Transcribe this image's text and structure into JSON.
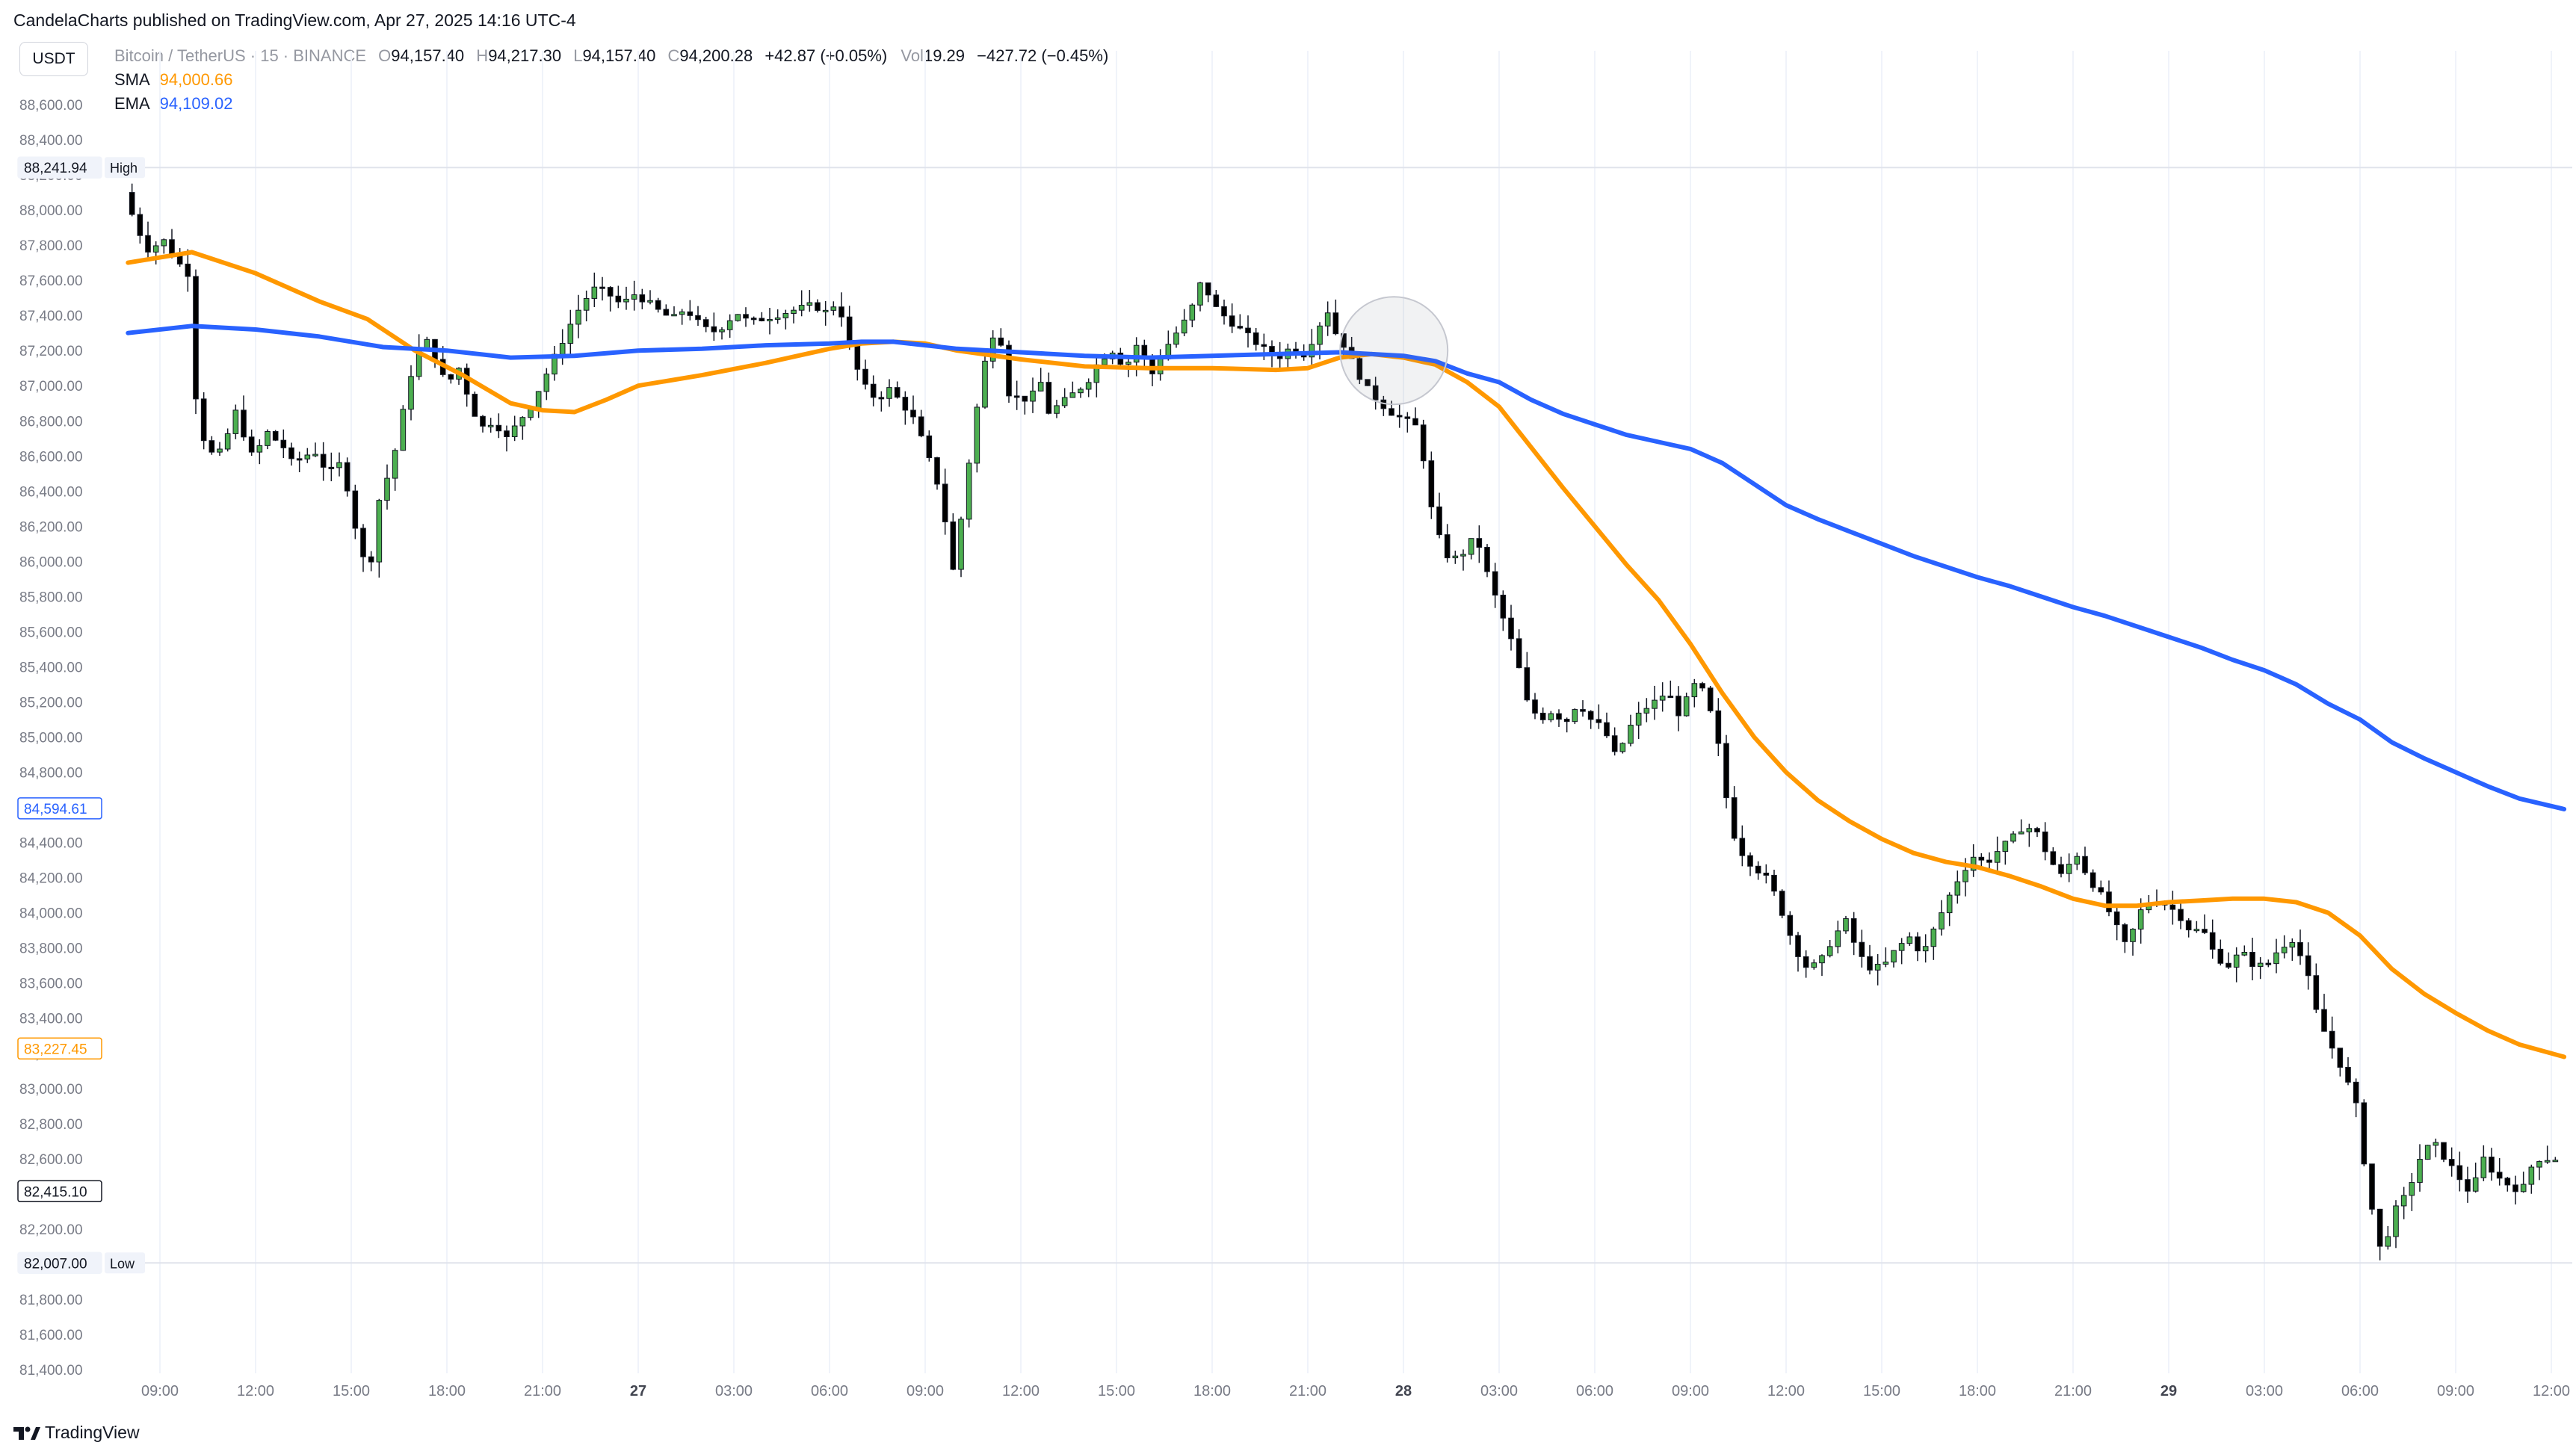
{
  "header": {
    "published": "CandelaCharts published on TradingView.com, Apr 27, 2025 14:16 UTC-4",
    "symbol_button": "USDT"
  },
  "legend": {
    "title": "Bitcoin / TetherUS · 15 · BINANCE",
    "o_label": "O",
    "o_value": "94,157.40",
    "h_label": "H",
    "h_value": "94,217.30",
    "l_label": "L",
    "l_value": "94,157.40",
    "c_label": "C",
    "c_value": "94,200.28",
    "change": "+42.87 (+0.05%)",
    "vol_label": "Vol",
    "vol_value": "19.29",
    "vol_change": "−427.72 (−0.45%)",
    "sma_label": "SMA",
    "sma_value": "94,000.66",
    "ema_label": "EMA",
    "ema_value": "94,109.02"
  },
  "footer": {
    "brand": "TradingView"
  },
  "colors": {
    "up": "#4caf50",
    "down": "#000000",
    "sma": "#ff9800",
    "ema": "#2962ff",
    "grid": "#f0f3fa",
    "text": "#131722",
    "muted": "#787b86"
  },
  "chart_data": {
    "type": "candlestick",
    "ylim": [
      81400,
      88700
    ],
    "y_ticks": [
      "88,600.00",
      "88,400.00",
      "88,200.00",
      "88,000.00",
      "87,800.00",
      "87,600.00",
      "87,400.00",
      "87,200.00",
      "87,000.00",
      "86,800.00",
      "86,600.00",
      "86,400.00",
      "86,200.00",
      "86,000.00",
      "85,800.00",
      "85,600.00",
      "85,400.00",
      "85,200.00",
      "85,000.00",
      "84,800.00",
      "84,600.00",
      "84,400.00",
      "84,200.00",
      "84,000.00",
      "83,800.00",
      "83,600.00",
      "83,400.00",
      "83,200.00",
      "83,000.00",
      "82,800.00",
      "82,600.00",
      "82,400.00",
      "82,200.00",
      "82,000.00",
      "81,800.00",
      "81,600.00",
      "81,400.00"
    ],
    "x_ticks": [
      "09:00",
      "12:00",
      "15:00",
      "18:00",
      "21:00",
      "27",
      "03:00",
      "06:00",
      "09:00",
      "12:00",
      "15:00",
      "18:00",
      "21:00",
      "28",
      "03:00",
      "06:00",
      "09:00",
      "12:00",
      "15:00",
      "18:00",
      "21:00",
      "29",
      "03:00",
      "06:00",
      "09:00",
      "12:00"
    ],
    "x_tick_hours": [
      9,
      12,
      15,
      18,
      21,
      24,
      27,
      30,
      33,
      36,
      39,
      42,
      45,
      48,
      51,
      54,
      57,
      60,
      63,
      66,
      69,
      72,
      75,
      78,
      81,
      84
    ],
    "x_range_hours": [
      8,
      84.4
    ],
    "day_boundaries": [
      24,
      48,
      72
    ],
    "price_labels": [
      {
        "text": "88,241.94",
        "value": 88241.94,
        "tag": "High",
        "style": "high"
      },
      {
        "text": "84,594.61",
        "value": 84594.61,
        "tag": "",
        "style": "ema"
      },
      {
        "text": "83,227.45",
        "value": 83227.45,
        "tag": "",
        "style": "sma"
      },
      {
        "text": "82,415.10",
        "value": 82415.1,
        "tag": "",
        "style": "last"
      },
      {
        "text": "82,007.00",
        "value": 82007.0,
        "tag": "Low",
        "style": "low"
      }
    ],
    "high": 88241.94,
    "low": 82007.0,
    "candle_path": [
      [
        8.0,
        88100
      ],
      [
        8.4,
        87900
      ],
      [
        8.8,
        87760
      ],
      [
        9.2,
        87840
      ],
      [
        9.6,
        87720
      ],
      [
        10.0,
        87640
      ],
      [
        10.3,
        86800
      ],
      [
        10.6,
        86650
      ],
      [
        10.9,
        86580
      ],
      [
        11.2,
        86700
      ],
      [
        11.5,
        86850
      ],
      [
        11.8,
        86700
      ],
      [
        12.1,
        86560
      ],
      [
        12.4,
        86750
      ],
      [
        12.7,
        86700
      ],
      [
        13.0,
        86650
      ],
      [
        13.3,
        86550
      ],
      [
        13.6,
        86600
      ],
      [
        14.0,
        86620
      ],
      [
        14.4,
        86500
      ],
      [
        14.8,
        86560
      ],
      [
        15.1,
        86350
      ],
      [
        15.4,
        86050
      ],
      [
        15.7,
        85950
      ],
      [
        16.0,
        86350
      ],
      [
        16.3,
        86500
      ],
      [
        16.6,
        86700
      ],
      [
        16.9,
        87000
      ],
      [
        17.2,
        87200
      ],
      [
        17.5,
        87250
      ],
      [
        17.8,
        87150
      ],
      [
        18.1,
        87000
      ],
      [
        18.5,
        87100
      ],
      [
        18.9,
        86880
      ],
      [
        19.2,
        86760
      ],
      [
        19.6,
        86800
      ],
      [
        20.0,
        86700
      ],
      [
        20.4,
        86800
      ],
      [
        20.8,
        86900
      ],
      [
        21.2,
        87050
      ],
      [
        21.6,
        87200
      ],
      [
        22.0,
        87350
      ],
      [
        22.4,
        87480
      ],
      [
        22.8,
        87560
      ],
      [
        23.2,
        87520
      ],
      [
        23.6,
        87460
      ],
      [
        24.0,
        87520
      ],
      [
        24.4,
        87480
      ],
      [
        24.8,
        87420
      ],
      [
        25.2,
        87380
      ],
      [
        25.6,
        87440
      ],
      [
        26.0,
        87360
      ],
      [
        26.4,
        87300
      ],
      [
        26.8,
        87340
      ],
      [
        27.2,
        87420
      ],
      [
        27.6,
        87360
      ],
      [
        28.0,
        87380
      ],
      [
        28.4,
        87400
      ],
      [
        28.8,
        87420
      ],
      [
        29.2,
        87440
      ],
      [
        29.6,
        87460
      ],
      [
        30.0,
        87420
      ],
      [
        30.4,
        87480
      ],
      [
        30.8,
        87180
      ],
      [
        31.2,
        87000
      ],
      [
        31.6,
        86920
      ],
      [
        32.0,
        86980
      ],
      [
        32.4,
        86900
      ],
      [
        32.8,
        86800
      ],
      [
        33.2,
        86600
      ],
      [
        33.6,
        86400
      ],
      [
        34.0,
        85950
      ],
      [
        34.3,
        86300
      ],
      [
        34.6,
        86700
      ],
      [
        34.9,
        87050
      ],
      [
        35.2,
        87300
      ],
      [
        35.5,
        87250
      ],
      [
        35.8,
        86900
      ],
      [
        36.1,
        86950
      ],
      [
        36.4,
        86900
      ],
      [
        36.7,
        87050
      ],
      [
        37.0,
        86850
      ],
      [
        37.4,
        86900
      ],
      [
        37.8,
        86960
      ],
      [
        38.2,
        87020
      ],
      [
        38.6,
        87150
      ],
      [
        39.0,
        87200
      ],
      [
        39.4,
        87100
      ],
      [
        39.8,
        87250
      ],
      [
        40.2,
        87050
      ],
      [
        40.6,
        87200
      ],
      [
        41.0,
        87300
      ],
      [
        41.4,
        87400
      ],
      [
        41.8,
        87600
      ],
      [
        42.2,
        87450
      ],
      [
        42.6,
        87380
      ],
      [
        43.0,
        87320
      ],
      [
        43.4,
        87260
      ],
      [
        43.8,
        87200
      ],
      [
        44.2,
        87160
      ],
      [
        44.6,
        87220
      ],
      [
        45.0,
        87180
      ],
      [
        45.4,
        87300
      ],
      [
        45.7,
        87450
      ],
      [
        46.0,
        87300
      ],
      [
        46.3,
        87220
      ],
      [
        46.6,
        87100
      ],
      [
        47.0,
        86980
      ],
      [
        47.4,
        86900
      ],
      [
        47.8,
        86840
      ],
      [
        48.2,
        86800
      ],
      [
        48.6,
        86760
      ],
      [
        49.0,
        86300
      ],
      [
        49.3,
        86100
      ],
      [
        49.6,
        86000
      ],
      [
        50.0,
        86050
      ],
      [
        50.4,
        86150
      ],
      [
        50.8,
        85900
      ],
      [
        51.2,
        85700
      ],
      [
        51.6,
        85500
      ],
      [
        52.0,
        85200
      ],
      [
        52.4,
        85100
      ],
      [
        52.8,
        85150
      ],
      [
        53.2,
        85080
      ],
      [
        53.6,
        85200
      ],
      [
        54.0,
        85100
      ],
      [
        54.4,
        85050
      ],
      [
        54.8,
        84880
      ],
      [
        55.2,
        85050
      ],
      [
        55.6,
        85150
      ],
      [
        56.0,
        85200
      ],
      [
        56.4,
        85260
      ],
      [
        56.8,
        85120
      ],
      [
        57.2,
        85300
      ],
      [
        57.6,
        85250
      ],
      [
        58.0,
        84950
      ],
      [
        58.4,
        84480
      ],
      [
        58.8,
        84320
      ],
      [
        59.2,
        84250
      ],
      [
        59.6,
        84180
      ],
      [
        60.0,
        84000
      ],
      [
        60.4,
        83800
      ],
      [
        60.8,
        83680
      ],
      [
        61.2,
        83720
      ],
      [
        61.6,
        83860
      ],
      [
        62.0,
        83950
      ],
      [
        62.4,
        83760
      ],
      [
        62.8,
        83680
      ],
      [
        63.2,
        83700
      ],
      [
        63.6,
        83800
      ],
      [
        64.0,
        83860
      ],
      [
        64.4,
        83760
      ],
      [
        64.8,
        83920
      ],
      [
        65.2,
        84080
      ],
      [
        65.6,
        84220
      ],
      [
        66.0,
        84320
      ],
      [
        66.4,
        84280
      ],
      [
        66.8,
        84360
      ],
      [
        67.2,
        84420
      ],
      [
        67.6,
        84500
      ],
      [
        68.0,
        84450
      ],
      [
        68.4,
        84300
      ],
      [
        68.8,
        84200
      ],
      [
        69.2,
        84350
      ],
      [
        69.6,
        84200
      ],
      [
        70.0,
        84100
      ],
      [
        70.4,
        83950
      ],
      [
        70.8,
        83800
      ],
      [
        71.2,
        84000
      ],
      [
        71.6,
        84080
      ],
      [
        72.0,
        84050
      ],
      [
        72.4,
        84000
      ],
      [
        72.8,
        83900
      ],
      [
        73.2,
        83900
      ],
      [
        73.6,
        83750
      ],
      [
        74.0,
        83700
      ],
      [
        74.4,
        83780
      ],
      [
        74.8,
        83700
      ],
      [
        75.2,
        83700
      ],
      [
        75.6,
        83800
      ],
      [
        76.0,
        83850
      ],
      [
        76.4,
        83700
      ],
      [
        76.8,
        83400
      ],
      [
        77.2,
        83250
      ],
      [
        77.6,
        83100
      ],
      [
        78.0,
        82900
      ],
      [
        78.4,
        82400
      ],
      [
        78.8,
        82050
      ],
      [
        79.2,
        82300
      ],
      [
        79.6,
        82400
      ],
      [
        80.0,
        82600
      ],
      [
        80.4,
        82700
      ],
      [
        80.8,
        82600
      ],
      [
        81.2,
        82500
      ],
      [
        81.6,
        82400
      ],
      [
        82.0,
        82600
      ],
      [
        82.4,
        82500
      ],
      [
        82.8,
        82450
      ],
      [
        83.2,
        82415
      ],
      [
        83.6,
        82600
      ],
      [
        84.0,
        82600
      ]
    ],
    "series": [
      {
        "name": "SMA",
        "color": "#ff9800",
        "points": [
          [
            8,
            87700
          ],
          [
            10,
            87760
          ],
          [
            12,
            87640
          ],
          [
            14,
            87480
          ],
          [
            15.5,
            87380
          ],
          [
            17,
            87200
          ],
          [
            18.5,
            87060
          ],
          [
            20,
            86900
          ],
          [
            21,
            86860
          ],
          [
            22,
            86850
          ],
          [
            23,
            86920
          ],
          [
            24,
            87000
          ],
          [
            26,
            87060
          ],
          [
            28,
            87130
          ],
          [
            30,
            87210
          ],
          [
            31,
            87240
          ],
          [
            32,
            87250
          ],
          [
            33,
            87240
          ],
          [
            34,
            87200
          ],
          [
            36,
            87150
          ],
          [
            38,
            87110
          ],
          [
            40,
            87100
          ],
          [
            42,
            87100
          ],
          [
            44,
            87090
          ],
          [
            45,
            87100
          ],
          [
            46,
            87160
          ],
          [
            47,
            87180
          ],
          [
            48,
            87160
          ],
          [
            49,
            87120
          ],
          [
            50,
            87020
          ],
          [
            51,
            86880
          ],
          [
            52,
            86650
          ],
          [
            53,
            86420
          ],
          [
            54,
            86200
          ],
          [
            55,
            85980
          ],
          [
            56,
            85780
          ],
          [
            57,
            85530
          ],
          [
            58,
            85250
          ],
          [
            59,
            85000
          ],
          [
            60,
            84800
          ],
          [
            61,
            84640
          ],
          [
            62,
            84520
          ],
          [
            63,
            84420
          ],
          [
            64,
            84340
          ],
          [
            65,
            84290
          ],
          [
            66,
            84260
          ],
          [
            67,
            84210
          ],
          [
            68,
            84150
          ],
          [
            69,
            84080
          ],
          [
            70,
            84040
          ],
          [
            71,
            84040
          ],
          [
            72,
            84060
          ],
          [
            73,
            84070
          ],
          [
            74,
            84080
          ],
          [
            75,
            84080
          ],
          [
            76,
            84060
          ],
          [
            77,
            84000
          ],
          [
            78,
            83870
          ],
          [
            79,
            83680
          ],
          [
            80,
            83540
          ],
          [
            81,
            83430
          ],
          [
            82,
            83330
          ],
          [
            83,
            83250
          ],
          [
            84.4,
            83180
          ]
        ]
      },
      {
        "name": "EMA",
        "color": "#2962ff",
        "points": [
          [
            8,
            87300
          ],
          [
            10,
            87340
          ],
          [
            12,
            87320
          ],
          [
            14,
            87280
          ],
          [
            16,
            87220
          ],
          [
            18,
            87200
          ],
          [
            20,
            87160
          ],
          [
            22,
            87170
          ],
          [
            24,
            87200
          ],
          [
            26,
            87210
          ],
          [
            28,
            87230
          ],
          [
            30,
            87240
          ],
          [
            31,
            87250
          ],
          [
            32,
            87250
          ],
          [
            34,
            87210
          ],
          [
            36,
            87190
          ],
          [
            38,
            87170
          ],
          [
            40,
            87160
          ],
          [
            42,
            87170
          ],
          [
            44,
            87180
          ],
          [
            46,
            87190
          ],
          [
            48,
            87170
          ],
          [
            49,
            87140
          ],
          [
            50,
            87070
          ],
          [
            51,
            87020
          ],
          [
            52,
            86920
          ],
          [
            53,
            86840
          ],
          [
            54,
            86780
          ],
          [
            55,
            86720
          ],
          [
            56,
            86680
          ],
          [
            57,
            86640
          ],
          [
            58,
            86560
          ],
          [
            59,
            86440
          ],
          [
            60,
            86320
          ],
          [
            61,
            86240
          ],
          [
            62,
            86170
          ],
          [
            63,
            86100
          ],
          [
            64,
            86030
          ],
          [
            65,
            85970
          ],
          [
            66,
            85910
          ],
          [
            67,
            85860
          ],
          [
            68,
            85800
          ],
          [
            69,
            85740
          ],
          [
            70,
            85690
          ],
          [
            71,
            85630
          ],
          [
            72,
            85570
          ],
          [
            73,
            85510
          ],
          [
            74,
            85440
          ],
          [
            75,
            85380
          ],
          [
            76,
            85300
          ],
          [
            77,
            85190
          ],
          [
            78,
            85100
          ],
          [
            79,
            84970
          ],
          [
            80,
            84880
          ],
          [
            81,
            84800
          ],
          [
            82,
            84720
          ],
          [
            83,
            84650
          ],
          [
            84.4,
            84590
          ]
        ]
      }
    ],
    "highlight_circle": {
      "hour": 47.7,
      "price": 87200
    }
  }
}
